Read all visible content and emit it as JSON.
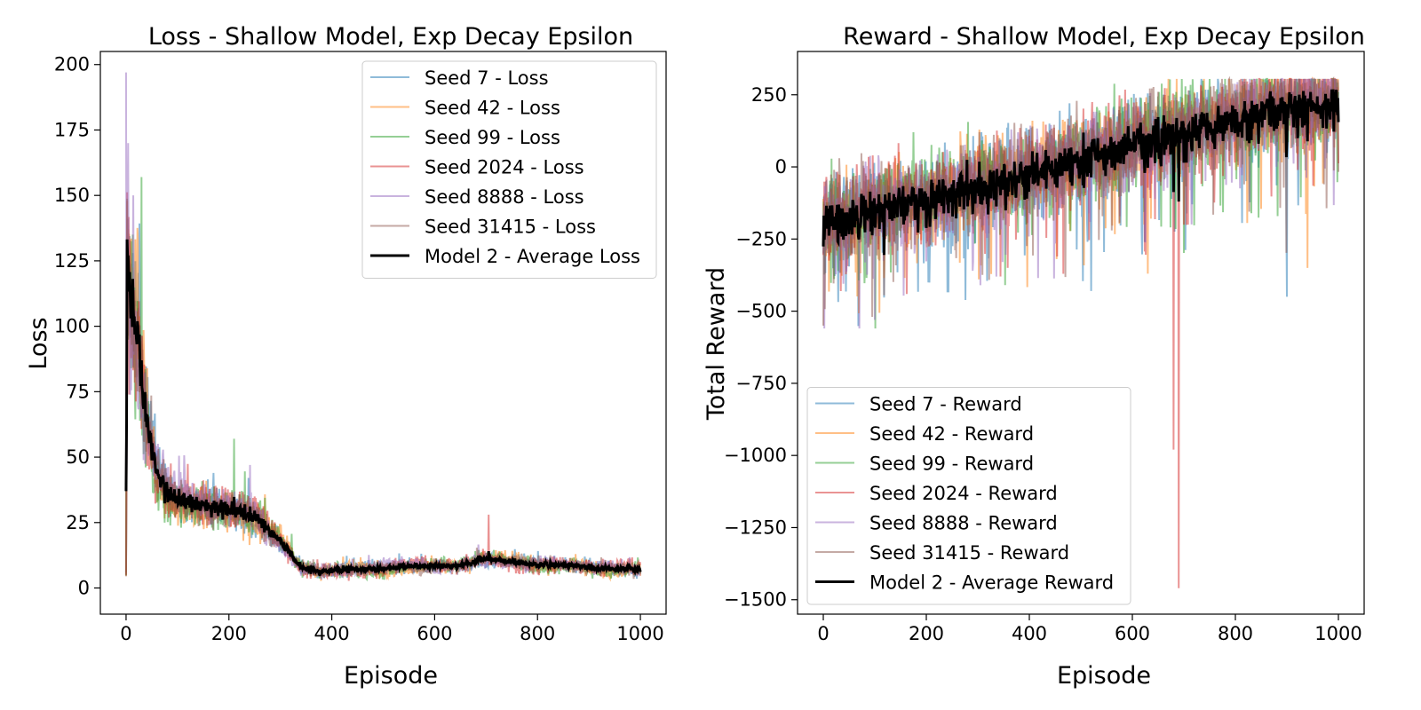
{
  "chart_data": [
    {
      "type": "line",
      "title": "Loss - Shallow Model, Exp Decay Epsilon",
      "xlabel": "Episode",
      "ylabel": "Loss",
      "xlim": [
        -50,
        1050
      ],
      "ylim": [
        -10,
        205
      ],
      "xticks": [
        0,
        200,
        400,
        600,
        800,
        1000
      ],
      "yticks": [
        0,
        25,
        50,
        75,
        100,
        125,
        150,
        175,
        200
      ],
      "grid": false,
      "legend_position": "upper right",
      "series": [
        {
          "name": "Seed 7 - Loss",
          "color": "#1f77b4",
          "seed": 7,
          "phase": 0.3,
          "noise": 1.0,
          "spikes": []
        },
        {
          "name": "Seed 42 - Loss",
          "color": "#ff7f0e",
          "seed": 42,
          "phase": 1.1,
          "noise": 1.1,
          "spikes": []
        },
        {
          "name": "Seed 99 - Loss",
          "color": "#2ca02c",
          "seed": 99,
          "phase": 2.0,
          "noise": 1.1,
          "spikes": [
            [
              30,
              157
            ],
            [
              210,
              57
            ]
          ]
        },
        {
          "name": "Seed 2024 - Loss",
          "color": "#d62728",
          "seed": 2024,
          "phase": 2.7,
          "noise": 1.1,
          "spikes": [
            [
              705,
              28
            ]
          ]
        },
        {
          "name": "Seed 8888 - Loss",
          "color": "#9467bd",
          "seed": 8888,
          "phase": 3.5,
          "noise": 1.0,
          "spikes": [
            [
              0,
              197
            ],
            [
              4,
              170
            ],
            [
              14,
              150
            ]
          ]
        },
        {
          "name": "Seed 31415 - Loss",
          "color": "#8c564b",
          "seed": 31415,
          "phase": 4.4,
          "noise": 0.9,
          "spikes": []
        }
      ],
      "average": {
        "name": "Model 2 - Average Loss",
        "color": "#000000"
      },
      "trend": {
        "x": [
          0,
          2,
          5,
          20,
          40,
          60,
          80,
          100,
          150,
          200,
          250,
          300,
          340,
          380,
          450,
          550,
          650,
          700,
          800,
          900,
          1000
        ],
        "y": [
          5,
          122,
          110,
          90,
          65,
          45,
          37,
          33,
          31,
          31,
          27,
          18,
          8,
          6,
          7,
          8,
          9,
          11,
          9,
          8,
          7
        ]
      }
    },
    {
      "type": "line",
      "title": "Reward - Shallow Model, Exp Decay Epsilon",
      "xlabel": "Episode",
      "ylabel": "Total Reward",
      "xlim": [
        -50,
        1050
      ],
      "ylim": [
        -1550,
        400
      ],
      "xticks": [
        0,
        200,
        400,
        600,
        800,
        1000
      ],
      "yticks": [
        250,
        0,
        -250,
        -500,
        -750,
        -1000,
        -1250,
        -1500
      ],
      "ytick_labels": [
        "250",
        "0",
        "−250",
        "−500",
        "−750",
        "−1000",
        "−1250",
        "−1500"
      ],
      "grid": false,
      "legend_position": "lower left",
      "series": [
        {
          "name": "Seed 7 - Reward",
          "color": "#1f77b4",
          "seed": 77,
          "phase": 0.6,
          "noise": 1.0,
          "spikes": [
            [
              900,
              -450
            ],
            [
              520,
              -430
            ]
          ]
        },
        {
          "name": "Seed 42 - Reward",
          "color": "#ff7f0e",
          "seed": 4242,
          "phase": 1.5,
          "noise": 1.0,
          "spikes": [
            [
              630,
              -370
            ],
            [
              940,
              -350
            ]
          ]
        },
        {
          "name": "Seed 99 - Reward",
          "color": "#2ca02c",
          "seed": 9999,
          "phase": 2.4,
          "noise": 1.0,
          "spikes": [
            [
              175,
              -690
            ],
            [
              175,
              120
            ]
          ]
        },
        {
          "name": "Seed 2024 - Reward",
          "color": "#d62728",
          "seed": 20240,
          "phase": 3.1,
          "noise": 1.0,
          "spikes": [
            [
              680,
              -980
            ],
            [
              690,
              -1460
            ],
            [
              700,
              -200
            ]
          ]
        },
        {
          "name": "Seed 8888 - Reward",
          "color": "#9467bd",
          "seed": 88880,
          "phase": 3.9,
          "noise": 1.0,
          "spikes": [
            [
              100,
              -530
            ]
          ]
        },
        {
          "name": "Seed 31415 - Reward",
          "color": "#8c564b",
          "seed": 314150,
          "phase": 4.8,
          "noise": 1.0,
          "spikes": [
            [
              0,
              -550
            ]
          ]
        }
      ],
      "average": {
        "name": "Model 2 - Average Reward",
        "color": "#000000"
      },
      "trend": {
        "x": [
          0,
          50,
          100,
          150,
          200,
          250,
          300,
          350,
          400,
          450,
          500,
          550,
          600,
          650,
          700,
          750,
          800,
          850,
          900,
          950,
          1000
        ],
        "y": [
          -180,
          -170,
          -140,
          -120,
          -110,
          -80,
          -60,
          -40,
          -20,
          10,
          30,
          60,
          90,
          110,
          130,
          150,
          170,
          190,
          210,
          220,
          230
        ]
      }
    }
  ]
}
